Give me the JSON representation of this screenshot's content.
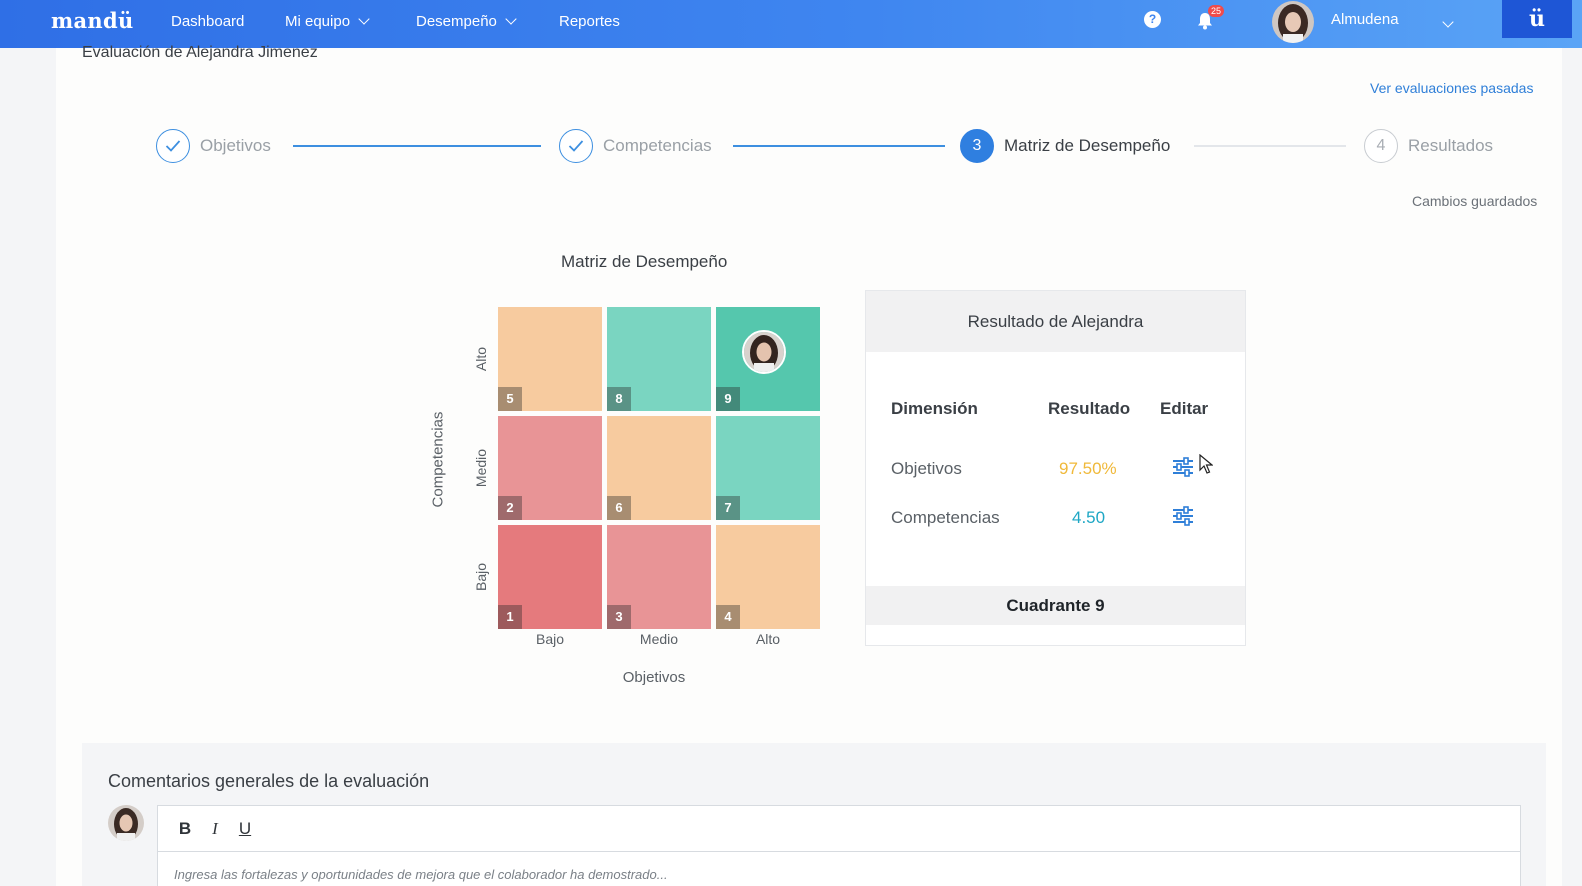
{
  "nav": {
    "logo": "mandü",
    "items": [
      {
        "label": "Dashboard"
      },
      {
        "label": "Mi equipo"
      },
      {
        "label": "Desempeño"
      },
      {
        "label": "Reportes"
      }
    ],
    "help_icon": "question-circle-icon",
    "notification_count": "25",
    "user_name": "Almudena",
    "brand_icon": "ü"
  },
  "page": {
    "title": "Evaluación de Alejandra Jimenez",
    "past_link": "Ver evaluaciones pasadas",
    "saved_status": "Cambios guardados"
  },
  "stepper": {
    "steps": [
      {
        "label": "Objetivos",
        "state": "done"
      },
      {
        "label": "Competencias",
        "state": "done"
      },
      {
        "label": "Matriz de Desempeño",
        "state": "active",
        "number": "3"
      },
      {
        "label": "Resultados",
        "state": "pending",
        "number": "4"
      }
    ]
  },
  "matrix": {
    "title": "Matriz de Desempeño",
    "x_axis_title": "Objetivos",
    "y_axis_title": "Competencias",
    "x_labels": [
      "Bajo",
      "Medio",
      "Alto"
    ],
    "y_labels": [
      "Alto",
      "Medio",
      "Bajo"
    ],
    "cells": [
      {
        "number": "5",
        "color": "#f7cb9f"
      },
      {
        "number": "8",
        "color": "#7ad5c1"
      },
      {
        "number": "9",
        "color": "#55c7ad"
      },
      {
        "number": "2",
        "color": "#e89496"
      },
      {
        "number": "6",
        "color": "#f7cb9f"
      },
      {
        "number": "7",
        "color": "#7ad5c1"
      },
      {
        "number": "1",
        "color": "#e57a7d"
      },
      {
        "number": "3",
        "color": "#e89496"
      },
      {
        "number": "4",
        "color": "#f7cb9f"
      }
    ],
    "selected_quadrant": "9"
  },
  "result": {
    "title": "Resultado de Alejandra",
    "headers": {
      "dimension": "Dimensión",
      "result": "Resultado",
      "edit": "Editar"
    },
    "rows": [
      {
        "dimension": "Objetivos",
        "value": "97.50%",
        "color": "#f0b93a"
      },
      {
        "dimension": "Competencias",
        "value": "4.50",
        "color": "#1ea7c5"
      }
    ],
    "footer": "Cuadrante 9"
  },
  "comments": {
    "title": "Comentarios generales de la evaluación",
    "toolbar": {
      "bold": "B",
      "italic": "I",
      "underline": "U"
    },
    "placeholder": "Ingresa las fortalezas y oportunidades de mejora que el colaborador ha demostrado..."
  }
}
